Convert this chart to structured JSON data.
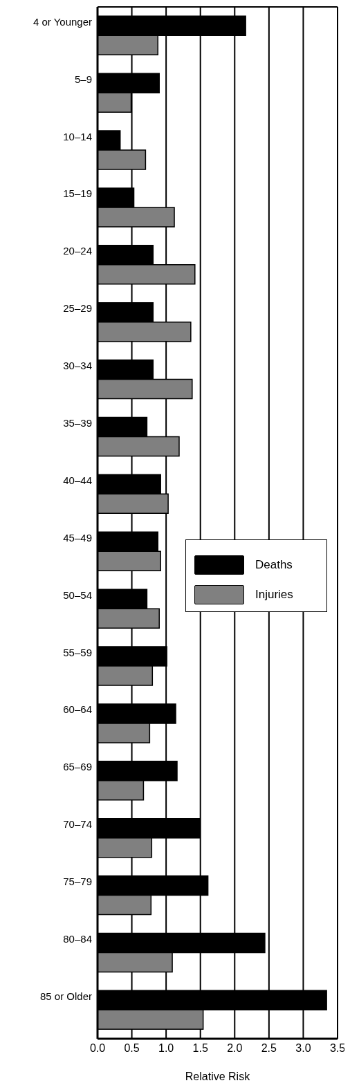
{
  "chart_data": {
    "type": "bar",
    "orientation": "horizontal",
    "xlabel": "Relative Risk",
    "categories": [
      "4 or Younger",
      "5–9",
      "10–14",
      "15–19",
      "20–24",
      "25–29",
      "30–34",
      "35–39",
      "40–44",
      "45–49",
      "50–54",
      "55–59",
      "60–64",
      "65–69",
      "70–74",
      "75–79",
      "80–84",
      "85 or Older"
    ],
    "series": [
      {
        "name": "Deaths",
        "color": "#000000",
        "values": [
          2.16,
          0.9,
          0.33,
          0.53,
          0.81,
          0.81,
          0.81,
          0.72,
          0.92,
          0.88,
          0.72,
          1.01,
          1.14,
          1.16,
          1.49,
          1.61,
          2.44,
          3.34
        ]
      },
      {
        "name": "Injuries",
        "color": "#808080",
        "values": [
          0.88,
          0.49,
          0.7,
          1.12,
          1.42,
          1.36,
          1.38,
          1.19,
          1.03,
          0.92,
          0.9,
          0.8,
          0.76,
          0.67,
          0.79,
          0.78,
          1.09,
          1.54
        ]
      }
    ],
    "xlim": [
      0,
      3.5
    ],
    "xticks": [
      {
        "value": 0,
        "label": "0.0"
      },
      {
        "value": 0.5,
        "label": "0.5"
      },
      {
        "value": 1,
        "label": "1.0"
      },
      {
        "value": 1.5,
        "label": "1.5"
      },
      {
        "value": 2,
        "label": "2.0"
      },
      {
        "value": 2.5,
        "label": "2.5"
      },
      {
        "value": 3,
        "label": "3.0"
      },
      {
        "value": 3.5,
        "label": "3.5"
      }
    ],
    "grid": "x",
    "legend": "right"
  }
}
